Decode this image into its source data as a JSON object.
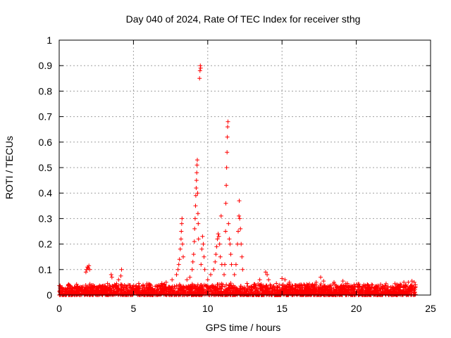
{
  "chart_data": {
    "type": "scatter",
    "title": "Day 040 of 2024, Rate Of TEC Index for receiver sthg",
    "xlabel": "GPS time / hours",
    "ylabel": "ROTI / TECUs",
    "xlim": [
      0,
      25
    ],
    "ylim": [
      0,
      1
    ],
    "x_ticks": [
      0,
      5,
      10,
      15,
      20,
      25
    ],
    "x_tick_labels": [
      "0",
      "5",
      "10",
      "15",
      "20",
      "25"
    ],
    "y_ticks": [
      0,
      0.1,
      0.2,
      0.3,
      0.4,
      0.5,
      0.6,
      0.7,
      0.8,
      0.9,
      1
    ],
    "y_tick_labels": [
      "0",
      "0.1",
      "0.2",
      "0.3",
      "0.4",
      "0.5",
      "0.6",
      "0.7",
      "0.8",
      "0.9",
      "1"
    ],
    "grid": true,
    "legend": "none",
    "marker": "plus",
    "colors": {
      "series": "#ff0000",
      "grid": "#a0a0a0",
      "axes": "#000000"
    },
    "time_range_hours": [
      0,
      24
    ],
    "baseline_band": [
      0,
      0.03
    ],
    "series": [
      {
        "points": [
          [
            1.85,
            0.1
          ],
          [
            1.9,
            0.11
          ],
          [
            1.95,
            0.105
          ],
          [
            2.0,
            0.115
          ],
          [
            1.8,
            0.09
          ],
          [
            2.05,
            0.1
          ],
          [
            3.5,
            0.08
          ],
          [
            3.55,
            0.07
          ],
          [
            4.2,
            0.1
          ],
          [
            4.15,
            0.075
          ],
          [
            4.0,
            0.06
          ],
          [
            7.2,
            0.05
          ],
          [
            7.6,
            0.06
          ],
          [
            7.9,
            0.08
          ],
          [
            8.0,
            0.1
          ],
          [
            8.05,
            0.12
          ],
          [
            8.1,
            0.14
          ],
          [
            8.15,
            0.18
          ],
          [
            8.2,
            0.22
          ],
          [
            8.22,
            0.25
          ],
          [
            8.25,
            0.28
          ],
          [
            8.27,
            0.3
          ],
          [
            8.3,
            0.2
          ],
          [
            8.35,
            0.15
          ],
          [
            8.6,
            0.06
          ],
          [
            8.8,
            0.07
          ],
          [
            8.95,
            0.1
          ],
          [
            9.0,
            0.13
          ],
          [
            9.05,
            0.16
          ],
          [
            9.1,
            0.21
          ],
          [
            9.12,
            0.26
          ],
          [
            9.15,
            0.3
          ],
          [
            9.18,
            0.35
          ],
          [
            9.2,
            0.39
          ],
          [
            9.22,
            0.42
          ],
          [
            9.24,
            0.45
          ],
          [
            9.26,
            0.48
          ],
          [
            9.28,
            0.51
          ],
          [
            9.3,
            0.53
          ],
          [
            9.32,
            0.4
          ],
          [
            9.34,
            0.32
          ],
          [
            9.36,
            0.28
          ],
          [
            9.38,
            0.22
          ],
          [
            9.45,
            0.85
          ],
          [
            9.48,
            0.88
          ],
          [
            9.5,
            0.9
          ],
          [
            9.52,
            0.89
          ],
          [
            9.55,
            0.12
          ],
          [
            9.6,
            0.18
          ],
          [
            9.65,
            0.23
          ],
          [
            9.7,
            0.2
          ],
          [
            9.75,
            0.15
          ],
          [
            9.8,
            0.1
          ],
          [
            10.0,
            0.06
          ],
          [
            10.2,
            0.08
          ],
          [
            10.4,
            0.1
          ],
          [
            10.5,
            0.13
          ],
          [
            10.55,
            0.16
          ],
          [
            10.6,
            0.19
          ],
          [
            10.65,
            0.22
          ],
          [
            10.7,
            0.24
          ],
          [
            10.75,
            0.23
          ],
          [
            10.8,
            0.2
          ],
          [
            10.85,
            0.15
          ],
          [
            10.9,
            0.31
          ],
          [
            10.95,
            0.12
          ],
          [
            11.1,
            0.08
          ],
          [
            11.15,
            0.12
          ],
          [
            11.2,
            0.25
          ],
          [
            11.22,
            0.36
          ],
          [
            11.25,
            0.43
          ],
          [
            11.27,
            0.5
          ],
          [
            11.3,
            0.56
          ],
          [
            11.32,
            0.62
          ],
          [
            11.34,
            0.66
          ],
          [
            11.36,
            0.68
          ],
          [
            11.4,
            0.28
          ],
          [
            11.45,
            0.22
          ],
          [
            11.5,
            0.2
          ],
          [
            11.55,
            0.16
          ],
          [
            11.6,
            0.12
          ],
          [
            11.8,
            0.08
          ],
          [
            11.9,
            0.12
          ],
          [
            12.0,
            0.2
          ],
          [
            12.05,
            0.25
          ],
          [
            12.1,
            0.31
          ],
          [
            12.12,
            0.37
          ],
          [
            12.15,
            0.3
          ],
          [
            12.2,
            0.26
          ],
          [
            12.25,
            0.2
          ],
          [
            12.3,
            0.15
          ],
          [
            12.35,
            0.1
          ],
          [
            13.5,
            0.06
          ],
          [
            13.9,
            0.09
          ],
          [
            14.0,
            0.08
          ],
          [
            14.1,
            0.06
          ],
          [
            15.0,
            0.065
          ],
          [
            15.2,
            0.06
          ],
          [
            15.5,
            0.05
          ],
          [
            16.2,
            0.04
          ],
          [
            17.3,
            0.05
          ],
          [
            17.6,
            0.07
          ],
          [
            17.8,
            0.055
          ],
          [
            18.5,
            0.05
          ],
          [
            19.1,
            0.055
          ],
          [
            19.3,
            0.045
          ],
          [
            20.5,
            0.04
          ],
          [
            21.8,
            0.035
          ],
          [
            22.6,
            0.045
          ],
          [
            23.2,
            0.05
          ],
          [
            23.5,
            0.05
          ],
          [
            23.75,
            0.055
          ],
          [
            23.9,
            0.05
          ]
        ]
      }
    ]
  }
}
